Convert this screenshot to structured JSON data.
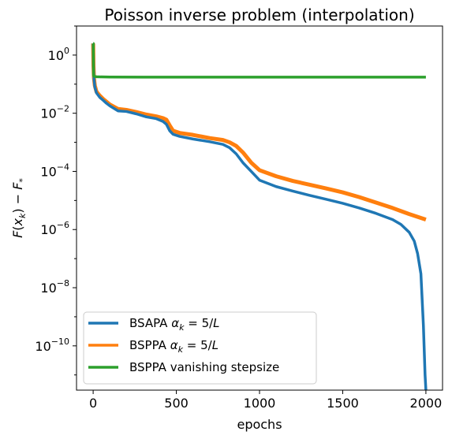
{
  "chart_data": {
    "type": "line",
    "title": "Poisson inverse problem (interpolation)",
    "xlabel": "epochs",
    "ylabel": "F(x_k) − F_*",
    "yscale": "log",
    "xlim": [
      -100,
      2100
    ],
    "ylim": [
      3e-12,
      10
    ],
    "xticks": [
      0,
      500,
      1000,
      1500,
      2000
    ],
    "xtick_labels": [
      "0",
      "500",
      "1000",
      "1500",
      "2000"
    ],
    "yticks_exp": [
      0,
      -2,
      -4,
      -6,
      -8,
      -10
    ],
    "ytick_labels": [
      {
        "base": "10",
        "exp": "0"
      },
      {
        "base": "10",
        "exp": "−2"
      },
      {
        "base": "10",
        "exp": "−4"
      },
      {
        "base": "10",
        "exp": "−6"
      },
      {
        "base": "10",
        "exp": "−8"
      },
      {
        "base": "10",
        "exp": "−10"
      }
    ],
    "grid": false,
    "legend_position": "lower-left",
    "series": [
      {
        "name": "BSAPA α_k = 5/L",
        "color": "#1f77b4",
        "x": [
          0,
          2,
          5,
          10,
          20,
          40,
          60,
          80,
          100,
          150,
          200,
          260,
          320,
          380,
          420,
          440,
          460,
          480,
          520,
          600,
          700,
          780,
          820,
          860,
          900,
          950,
          1000,
          1100,
          1200,
          1300,
          1400,
          1500,
          1600,
          1700,
          1800,
          1850,
          1900,
          1930,
          1950,
          1970,
          1985,
          1995,
          2000
        ],
        "y": [
          2.5,
          0.4,
          0.15,
          0.08,
          0.05,
          0.035,
          0.028,
          0.022,
          0.018,
          0.012,
          0.0115,
          0.0095,
          0.0075,
          0.0065,
          0.0052,
          0.0042,
          0.0025,
          0.0019,
          0.0016,
          0.0013,
          0.00105,
          0.00085,
          0.00065,
          0.0004,
          0.0002,
          0.0001,
          5e-05,
          3e-05,
          2.1e-05,
          1.5e-05,
          1.1e-05,
          8e-06,
          5.5e-06,
          3.6e-06,
          2.2e-06,
          1.5e-06,
          8e-07,
          4e-07,
          1.5e-07,
          3e-08,
          5e-10,
          1e-11,
          3e-12
        ]
      },
      {
        "name": "BSPPA α_k = 5/L",
        "color": "#ff7f0e",
        "x": [
          0,
          2,
          5,
          10,
          20,
          40,
          60,
          80,
          100,
          150,
          200,
          260,
          320,
          380,
          420,
          440,
          460,
          480,
          520,
          600,
          700,
          780,
          820,
          860,
          900,
          950,
          1000,
          1100,
          1200,
          1300,
          1400,
          1500,
          1600,
          1700,
          1800,
          1900,
          2000
        ],
        "y": [
          2.5,
          0.42,
          0.16,
          0.09,
          0.055,
          0.04,
          0.031,
          0.025,
          0.02,
          0.014,
          0.013,
          0.011,
          0.009,
          0.0078,
          0.0068,
          0.006,
          0.0038,
          0.0025,
          0.0021,
          0.0018,
          0.0014,
          0.0012,
          0.001,
          0.00075,
          0.00045,
          0.0002,
          0.00011,
          6.8e-05,
          4.7e-05,
          3.5e-05,
          2.6e-05,
          1.9e-05,
          1.3e-05,
          8.5e-06,
          5.5e-06,
          3.4e-06,
          2.2e-06
        ]
      },
      {
        "name": "BSPPA vanishing stepsize",
        "color": "#2ca02c",
        "x": [
          0,
          1,
          2,
          4,
          8,
          20,
          40,
          100,
          300,
          600,
          1000,
          1500,
          2000
        ],
        "y": [
          2.5,
          2.5,
          0.2,
          0.19,
          0.185,
          0.18,
          0.178,
          0.176,
          0.175,
          0.175,
          0.174,
          0.174,
          0.174
        ]
      }
    ]
  },
  "legend": {
    "entries": [
      {
        "prefix": "BSAPA ",
        "math": true,
        "color": "#1f77b4"
      },
      {
        "prefix": "BSPPA ",
        "math": true,
        "color": "#ff7f0e"
      },
      {
        "prefix": "BSPPA vanishing stepsize",
        "math": false,
        "color": "#2ca02c"
      }
    ]
  }
}
